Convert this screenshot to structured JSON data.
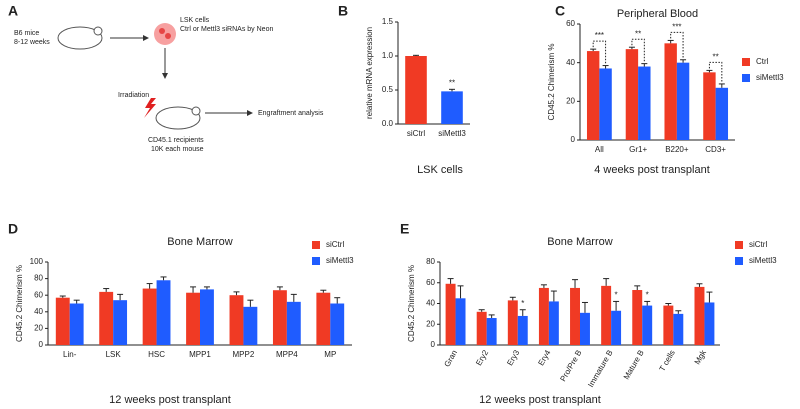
{
  "panel_labels": [
    "A",
    "B",
    "C",
    "D",
    "E"
  ],
  "diagram": {
    "donor": [
      "B6 mice",
      "8-12 weeks"
    ],
    "cells": [
      "LSK cells",
      "Ctrl or Mettl3 siRNAs by Neon"
    ],
    "treatment": "Irradiation",
    "recipient": [
      "CD45.1 recipients",
      "10K each mouse"
    ],
    "analysis": "Engraftment analysis"
  },
  "chart_data": [
    {
      "type": "bar",
      "ylabel": "relative mRNA expression",
      "xlabel": "LSK cells",
      "categories": [
        "siCtrl",
        "siMettl3"
      ],
      "values": [
        1.0,
        0.48
      ],
      "errors": [
        0.01,
        0.03
      ],
      "colors": [
        "#f03a24",
        "#1f5cff"
      ],
      "significance": [
        null,
        "**"
      ],
      "ylim": [
        0,
        1.5
      ],
      "yticks": [
        {
          "value": 0,
          "label": "0.0"
        },
        {
          "value": 0.5,
          "label": "0.5"
        },
        {
          "value": 1,
          "label": "1.0"
        },
        {
          "value": 1.5,
          "label": "1.5"
        }
      ]
    },
    {
      "type": "bar",
      "title": "Peripheral Blood",
      "ylabel": "CD45.2 Chimerism %",
      "xlabel": "4 weeks post transplant",
      "categories": [
        "All",
        "Gr1+",
        "B220+",
        "CD3+"
      ],
      "series": [
        {
          "name": "Ctrl",
          "color": "#f03a24",
          "values": [
            46,
            47,
            50,
            35
          ],
          "errors": [
            1,
            1,
            1.5,
            1
          ]
        },
        {
          "name": "siMettl3",
          "color": "#1f5cff",
          "values": [
            37,
            38,
            40,
            27
          ],
          "errors": [
            1.5,
            1.5,
            1.5,
            2
          ]
        }
      ],
      "significance": [
        "***",
        "**",
        "***",
        "**"
      ],
      "ylim": [
        0,
        60
      ],
      "yticks": [
        0,
        20,
        40,
        60
      ],
      "legend": "right"
    },
    {
      "type": "bar",
      "title": "Bone Marrow",
      "ylabel": "CD45.2 Chimerism %",
      "xlabel": "12 weeks post transplant",
      "categories": [
        "Lin-",
        "LSK",
        "HSC",
        "MPP1",
        "MPP2",
        "MPP4",
        "MP"
      ],
      "series": [
        {
          "name": "siCtrl",
          "color": "#f03a24",
          "values": [
            57,
            64,
            68,
            63,
            60,
            66,
            63
          ],
          "errors": [
            2,
            4,
            6,
            7,
            4,
            4,
            3
          ]
        },
        {
          "name": "siMettl3",
          "color": "#1f5cff",
          "values": [
            50,
            54,
            78,
            67,
            46,
            52,
            50
          ],
          "errors": [
            4,
            7,
            4,
            3,
            8,
            9,
            7
          ]
        }
      ],
      "ylim": [
        0,
        100
      ],
      "yticks": [
        0,
        20,
        40,
        60,
        80,
        100
      ],
      "legend": "top right"
    },
    {
      "type": "bar",
      "title": "Bone Marrow",
      "ylabel": "CD45.2 Chimerism %",
      "xlabel": "12 weeks post transplant",
      "categories": [
        "Gran",
        "Ery2",
        "Ery3",
        "Ery4",
        "Pro/Pre B",
        "Immature B",
        "Mature B",
        "T cells",
        "Mgk"
      ],
      "series": [
        {
          "name": "siCtrl",
          "color": "#f03a24",
          "values": [
            59,
            32,
            43,
            55,
            55,
            57,
            53,
            38,
            56
          ],
          "errors": [
            5,
            2,
            3,
            3,
            8,
            7,
            4,
            2,
            3
          ]
        },
        {
          "name": "siMettl3",
          "color": "#1f5cff",
          "values": [
            45,
            26,
            28,
            42,
            31,
            33,
            38,
            30,
            41
          ],
          "errors": [
            12,
            3,
            6,
            10,
            10,
            9,
            4,
            3,
            10
          ]
        }
      ],
      "significance": [
        null,
        null,
        "*",
        null,
        null,
        "*",
        "*",
        null,
        null
      ],
      "ylim": [
        0,
        80
      ],
      "yticks": [
        0,
        20,
        40,
        60,
        80
      ],
      "legend": "top right"
    }
  ]
}
